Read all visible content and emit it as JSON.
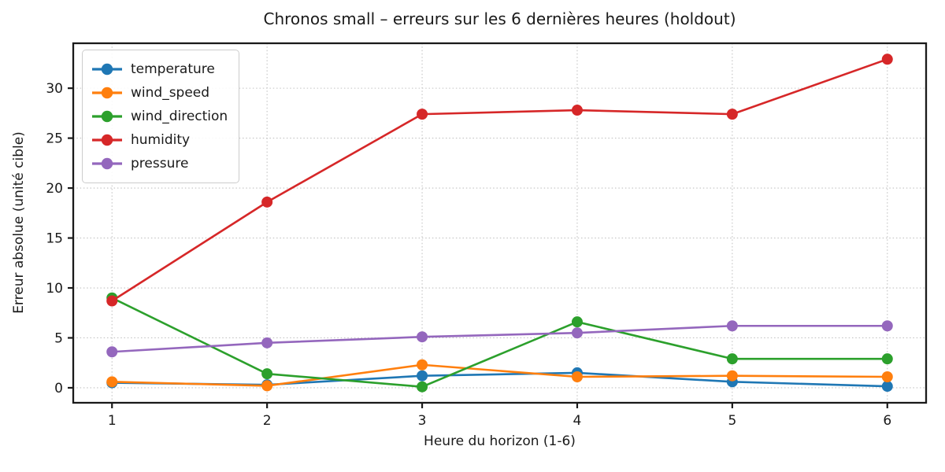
{
  "chart_data": {
    "type": "line",
    "title": "Chronos small – erreurs sur les 6 dernières heures (holdout)",
    "xlabel": "Heure du horizon (1-6)",
    "ylabel": "Erreur absolue (unité cible)",
    "x": [
      1,
      2,
      3,
      4,
      5,
      6
    ],
    "xticks": [
      1,
      2,
      3,
      4,
      5,
      6
    ],
    "yticks": [
      0,
      5,
      10,
      15,
      20,
      25,
      30
    ],
    "xlim": [
      0.75,
      6.25
    ],
    "ylim": [
      -1.5,
      34.5
    ],
    "grid": true,
    "legend_position": "upper left",
    "series": [
      {
        "name": "temperature",
        "color": "#1f77b4",
        "values": [
          0.5,
          0.3,
          1.2,
          1.5,
          0.6,
          0.15
        ]
      },
      {
        "name": "wind_speed",
        "color": "#ff7f0e",
        "values": [
          0.6,
          0.2,
          2.3,
          1.1,
          1.2,
          1.1
        ]
      },
      {
        "name": "wind_direction",
        "color": "#2ca02c",
        "values": [
          9.0,
          1.4,
          0.1,
          6.6,
          2.9,
          2.9
        ]
      },
      {
        "name": "humidity",
        "color": "#d62728",
        "values": [
          8.7,
          18.6,
          27.4,
          27.8,
          27.4,
          32.9
        ]
      },
      {
        "name": "pressure",
        "color": "#9467bd",
        "values": [
          3.6,
          4.5,
          5.1,
          5.5,
          6.2,
          6.2
        ]
      }
    ],
    "style": {
      "grid_color": "#c2c2c2",
      "spine_color": "#1a1a1a",
      "background": "#ffffff"
    }
  }
}
